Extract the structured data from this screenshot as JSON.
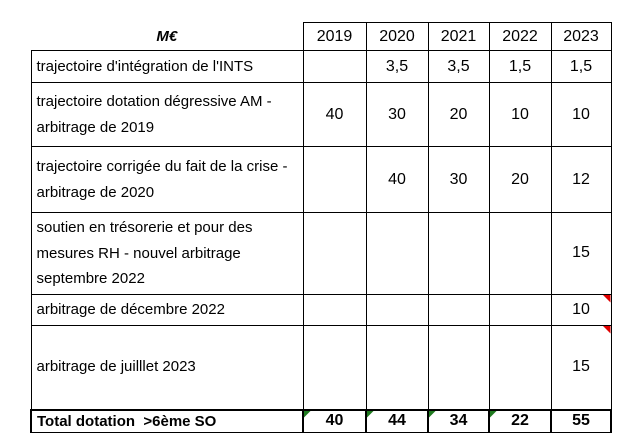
{
  "colors": {
    "background": "#ffffff",
    "text": "#000000",
    "grid_border": "#000000",
    "red_comment_marker": "#e00000",
    "green_error_marker": "#1f7a1f"
  },
  "table": {
    "unit_label": "M€",
    "year_headers": [
      "2019",
      "2020",
      "2021",
      "2022",
      "2023"
    ],
    "rows": [
      {
        "label": "trajectoire d'intégration de l'INTS",
        "values": [
          "",
          "3,5",
          "3,5",
          "1,5",
          "1,5"
        ]
      },
      {
        "label": "trajectoire dotation dégressive AM - arbitrage de 2019",
        "values": [
          "40",
          "30",
          "20",
          "10",
          "10"
        ]
      },
      {
        "label": "trajectoire corrigée du fait de la crise - arbitrage de 2020",
        "values": [
          "",
          "40",
          "30",
          "20",
          "12"
        ]
      },
      {
        "label": "soutien en trésorerie et pour des mesures RH - nouvel arbitrage septembre 2022",
        "values": [
          "",
          "",
          "",
          "",
          "15"
        ]
      },
      {
        "label": "arbitrage de décembre 2022",
        "values": [
          "",
          "",
          "",
          "",
          "10"
        ],
        "comment_marker": "red triangle top-right of 2023 cell"
      },
      {
        "label": "arbitrage de juilllet 2023",
        "values": [
          "",
          "",
          "",
          "",
          "15"
        ],
        "comment_marker": "red triangle top-right of 2023 cell"
      }
    ],
    "total_row": {
      "label": "Total dotation  >6ème SO",
      "values": [
        "40",
        "44",
        "34",
        "22",
        "55"
      ],
      "error_markers": "green triangles top-left of 2019, 2020, 2021 and 2022 cells"
    }
  }
}
